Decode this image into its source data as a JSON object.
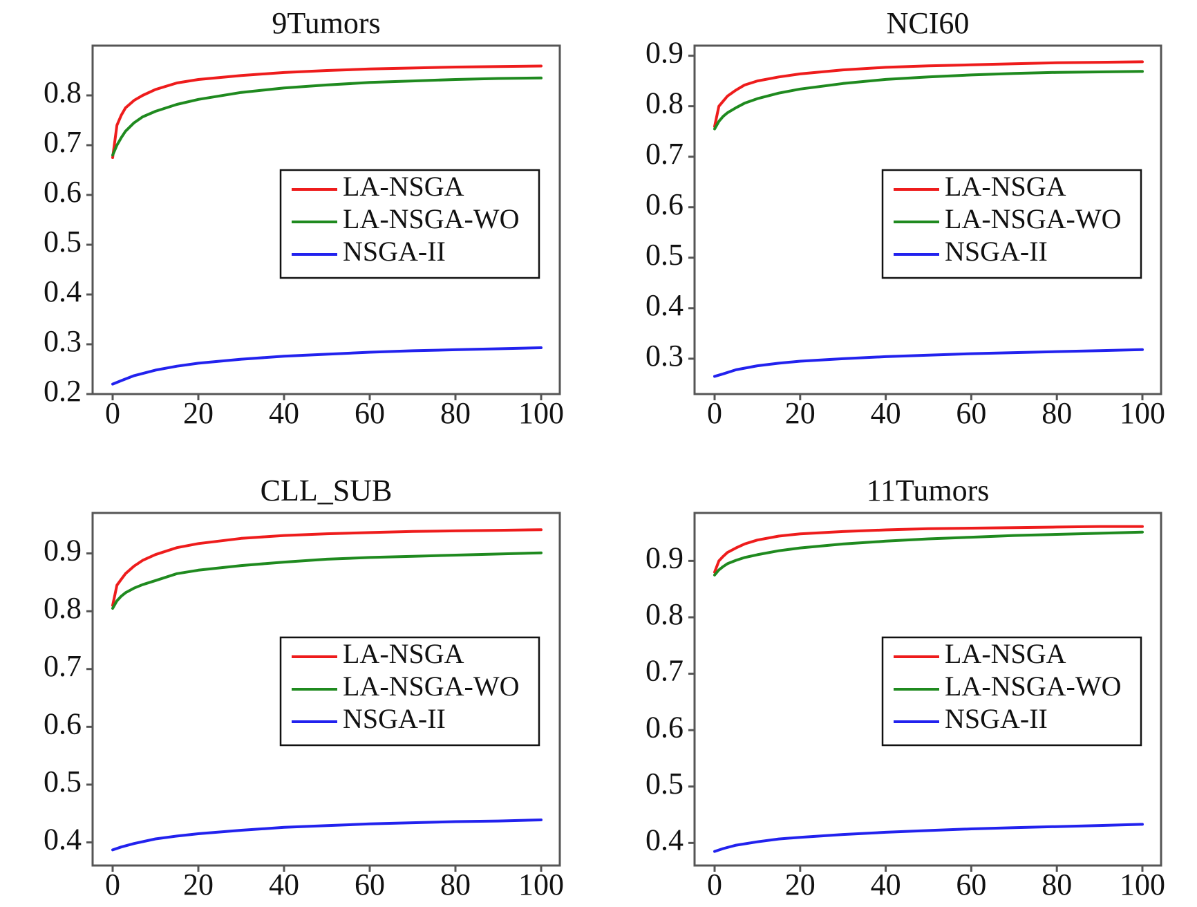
{
  "chart_data": [
    {
      "type": "line",
      "title": "9Tumors",
      "xlim": [
        0,
        100
      ],
      "ylim": [
        0.2,
        0.9
      ],
      "x_ticks": [
        "0",
        "20",
        "40",
        "60",
        "80",
        "100"
      ],
      "y_ticks": [
        "0.2",
        "0.3",
        "0.4",
        "0.5",
        "0.6",
        "0.7",
        "0.8"
      ],
      "legend_position": "center-right",
      "grid": false,
      "series": [
        {
          "name": "LA-NSGA",
          "color": "#ee1c1c",
          "x": [
            0,
            1,
            2,
            3,
            5,
            7,
            10,
            15,
            20,
            30,
            40,
            50,
            60,
            70,
            80,
            90,
            100
          ],
          "y": [
            0.675,
            0.74,
            0.76,
            0.775,
            0.79,
            0.8,
            0.812,
            0.825,
            0.832,
            0.84,
            0.846,
            0.85,
            0.853,
            0.855,
            0.857,
            0.858,
            0.859
          ]
        },
        {
          "name": "LA-NSGA-WO",
          "color": "#1f8a1f",
          "x": [
            0,
            1,
            2,
            3,
            5,
            7,
            10,
            15,
            20,
            30,
            40,
            50,
            60,
            70,
            80,
            90,
            100
          ],
          "y": [
            0.68,
            0.7,
            0.715,
            0.728,
            0.745,
            0.757,
            0.768,
            0.782,
            0.792,
            0.806,
            0.815,
            0.821,
            0.826,
            0.829,
            0.832,
            0.834,
            0.835
          ]
        },
        {
          "name": "NSGA-II",
          "color": "#2222ee",
          "x": [
            0,
            2,
            5,
            10,
            15,
            20,
            30,
            40,
            50,
            60,
            70,
            80,
            90,
            100
          ],
          "y": [
            0.22,
            0.227,
            0.237,
            0.248,
            0.256,
            0.262,
            0.27,
            0.276,
            0.28,
            0.284,
            0.287,
            0.289,
            0.291,
            0.293
          ]
        }
      ]
    },
    {
      "type": "line",
      "title": "NCI60",
      "xlim": [
        0,
        100
      ],
      "ylim": [
        0.23,
        0.92
      ],
      "x_ticks": [
        "0",
        "20",
        "40",
        "60",
        "80",
        "100"
      ],
      "y_ticks": [
        "0.3",
        "0.4",
        "0.5",
        "0.6",
        "0.7",
        "0.8",
        "0.9"
      ],
      "legend_position": "center-right",
      "grid": false,
      "series": [
        {
          "name": "LA-NSGA",
          "color": "#ee1c1c",
          "x": [
            0,
            1,
            2,
            3,
            5,
            7,
            10,
            15,
            20,
            30,
            40,
            50,
            60,
            70,
            80,
            90,
            100
          ],
          "y": [
            0.76,
            0.8,
            0.81,
            0.82,
            0.832,
            0.842,
            0.85,
            0.858,
            0.864,
            0.872,
            0.877,
            0.88,
            0.882,
            0.884,
            0.886,
            0.887,
            0.888
          ]
        },
        {
          "name": "LA-NSGA-WO",
          "color": "#1f8a1f",
          "x": [
            0,
            1,
            2,
            3,
            5,
            7,
            10,
            15,
            20,
            30,
            40,
            50,
            60,
            70,
            80,
            90,
            100
          ],
          "y": [
            0.755,
            0.77,
            0.78,
            0.787,
            0.797,
            0.806,
            0.815,
            0.826,
            0.834,
            0.845,
            0.853,
            0.858,
            0.862,
            0.865,
            0.867,
            0.868,
            0.869
          ]
        },
        {
          "name": "NSGA-II",
          "color": "#2222ee",
          "x": [
            0,
            2,
            5,
            10,
            15,
            20,
            30,
            40,
            50,
            60,
            70,
            80,
            90,
            100
          ],
          "y": [
            0.265,
            0.27,
            0.278,
            0.286,
            0.291,
            0.295,
            0.3,
            0.304,
            0.307,
            0.31,
            0.312,
            0.314,
            0.316,
            0.318
          ]
        }
      ]
    },
    {
      "type": "line",
      "title": "CLL_SUB",
      "xlim": [
        0,
        100
      ],
      "ylim": [
        0.36,
        0.97
      ],
      "x_ticks": [
        "0",
        "20",
        "40",
        "60",
        "80",
        "100"
      ],
      "y_ticks": [
        "0.4",
        "0.5",
        "0.6",
        "0.7",
        "0.8",
        "0.9"
      ],
      "legend_position": "center-right",
      "grid": false,
      "series": [
        {
          "name": "LA-NSGA",
          "color": "#ee1c1c",
          "x": [
            0,
            1,
            2,
            3,
            5,
            7,
            10,
            15,
            20,
            30,
            40,
            50,
            60,
            70,
            80,
            90,
            100
          ],
          "y": [
            0.81,
            0.845,
            0.855,
            0.865,
            0.878,
            0.888,
            0.898,
            0.91,
            0.917,
            0.926,
            0.931,
            0.934,
            0.936,
            0.938,
            0.939,
            0.94,
            0.941
          ]
        },
        {
          "name": "LA-NSGA-WO",
          "color": "#1f8a1f",
          "x": [
            0,
            1,
            2,
            3,
            5,
            7,
            10,
            15,
            20,
            30,
            40,
            50,
            60,
            70,
            80,
            90,
            100
          ],
          "y": [
            0.805,
            0.818,
            0.826,
            0.832,
            0.84,
            0.846,
            0.853,
            0.865,
            0.871,
            0.879,
            0.885,
            0.89,
            0.893,
            0.895,
            0.897,
            0.899,
            0.901
          ]
        },
        {
          "name": "NSGA-II",
          "color": "#2222ee",
          "x": [
            0,
            2,
            5,
            10,
            15,
            20,
            30,
            40,
            50,
            60,
            70,
            80,
            90,
            100
          ],
          "y": [
            0.387,
            0.392,
            0.398,
            0.406,
            0.411,
            0.415,
            0.421,
            0.426,
            0.429,
            0.432,
            0.434,
            0.436,
            0.437,
            0.439
          ]
        }
      ]
    },
    {
      "type": "line",
      "title": "11Tumors",
      "xlim": [
        0,
        100
      ],
      "ylim": [
        0.36,
        0.985
      ],
      "x_ticks": [
        "0",
        "20",
        "40",
        "60",
        "80",
        "100"
      ],
      "y_ticks": [
        "0.4",
        "0.5",
        "0.6",
        "0.7",
        "0.8",
        "0.9"
      ],
      "legend_position": "center-right",
      "grid": false,
      "series": [
        {
          "name": "LA-NSGA",
          "color": "#ee1c1c",
          "x": [
            0,
            1,
            2,
            3,
            5,
            7,
            10,
            15,
            20,
            30,
            40,
            50,
            60,
            70,
            80,
            90,
            100
          ],
          "y": [
            0.88,
            0.9,
            0.908,
            0.915,
            0.923,
            0.93,
            0.937,
            0.944,
            0.948,
            0.952,
            0.955,
            0.957,
            0.958,
            0.959,
            0.96,
            0.961,
            0.961
          ]
        },
        {
          "name": "LA-NSGA-WO",
          "color": "#1f8a1f",
          "x": [
            0,
            1,
            2,
            3,
            5,
            7,
            10,
            15,
            20,
            30,
            40,
            50,
            60,
            70,
            80,
            90,
            100
          ],
          "y": [
            0.875,
            0.884,
            0.89,
            0.895,
            0.901,
            0.906,
            0.911,
            0.918,
            0.923,
            0.93,
            0.935,
            0.939,
            0.942,
            0.945,
            0.947,
            0.949,
            0.951
          ]
        },
        {
          "name": "NSGA-II",
          "color": "#2222ee",
          "x": [
            0,
            2,
            5,
            10,
            15,
            20,
            30,
            40,
            50,
            60,
            70,
            80,
            90,
            100
          ],
          "y": [
            0.385,
            0.39,
            0.396,
            0.402,
            0.407,
            0.41,
            0.415,
            0.419,
            0.422,
            0.425,
            0.427,
            0.429,
            0.431,
            0.433
          ]
        }
      ]
    }
  ]
}
